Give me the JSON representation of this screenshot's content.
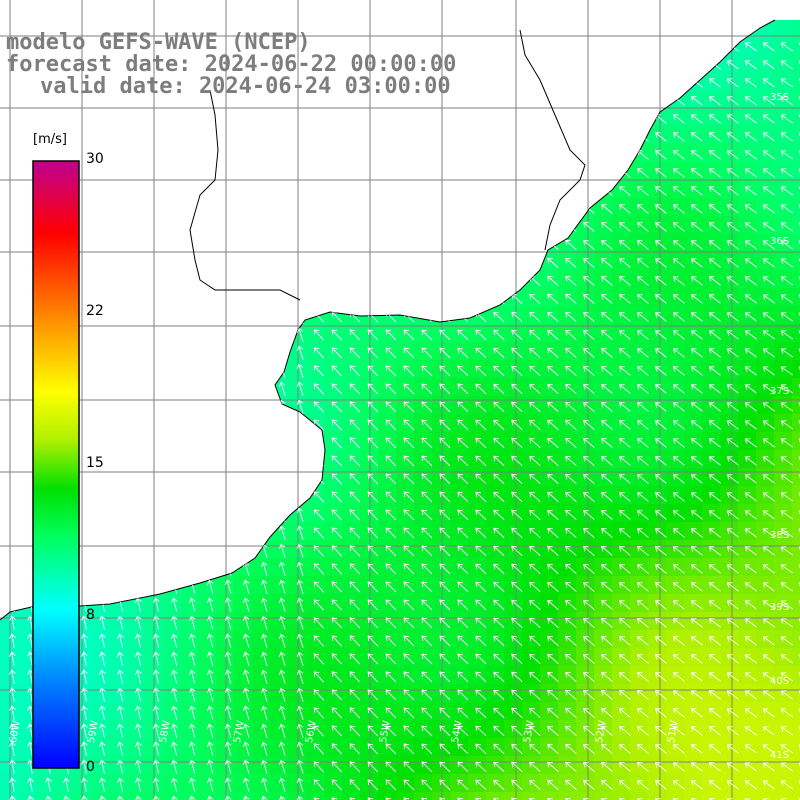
{
  "title": {
    "line1": "modelo GEFS-WAVE (NCEP)",
    "line2": "forecast date: 2024-06-22 00:00:00",
    "line3": "valid date: 2024-06-24 03:00:00"
  },
  "colorbar": {
    "unit": "[m/s]",
    "min": 0,
    "max": 30,
    "ticks": [
      "30",
      "22",
      "15",
      "8",
      "0"
    ],
    "tick_values": [
      30,
      22,
      15,
      8,
      0
    ],
    "colors": [
      "#0000ff",
      "#00a0ff",
      "#00ffff",
      "#00ff60",
      "#00e000",
      "#b0f000",
      "#ffff00",
      "#ffa000",
      "#ff6000",
      "#ff0000",
      "#e00060",
      "#c00090"
    ]
  },
  "map": {
    "lat_labels": [
      "35S",
      "36S",
      "37S",
      "38S",
      "39S",
      "40S",
      "41S"
    ],
    "lon_labels": [
      "60W",
      "59W",
      "58W",
      "57W",
      "56W",
      "55W",
      "54W",
      "53W",
      "52W",
      "51W"
    ],
    "land_color": "#ffffff",
    "grid_color": "#7f7f7f",
    "arrow_color": "#ffffff",
    "speed_range_mps": [
      8,
      17
    ]
  }
}
